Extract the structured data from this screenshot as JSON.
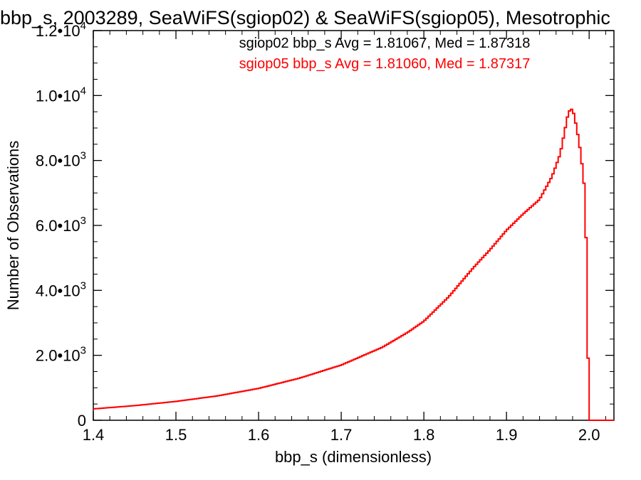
{
  "chart_data": {
    "type": "line",
    "title": "bbp_s, 2003289, SeaWiFS(sgiop02) & SeaWiFS(sgiop05), Mesotrophic",
    "xlabel": "bbp_s (dimensionless)",
    "ylabel": "Number of Observations",
    "xlim": [
      1.4,
      2.03
    ],
    "ylim": [
      0,
      12000
    ],
    "x_ticks": [
      1.4,
      1.5,
      1.6,
      1.7,
      1.8,
      1.9,
      2.0
    ],
    "x_tick_labels": [
      "1.4",
      "1.5",
      "1.6",
      "1.7",
      "1.8",
      "1.9",
      "2.0"
    ],
    "y_ticks": [
      {
        "value": 0,
        "mantissa": "0",
        "exponent": ""
      },
      {
        "value": 2000,
        "mantissa": "2.0•10",
        "exponent": "3"
      },
      {
        "value": 4000,
        "mantissa": "4.0•10",
        "exponent": "3"
      },
      {
        "value": 6000,
        "mantissa": "6.0•10",
        "exponent": "3"
      },
      {
        "value": 8000,
        "mantissa": "8.0•10",
        "exponent": "3"
      },
      {
        "value": 10000,
        "mantissa": "1.0•10",
        "exponent": "4"
      },
      {
        "value": 12000,
        "mantissa": "1.2•10",
        "exponent": "4"
      }
    ],
    "grid": false,
    "legend_position": "top-right",
    "annotations": [
      {
        "text": "sgiop02 bbp_s Avg = 1.81067, Med = 1.87318",
        "color": "#000000"
      },
      {
        "text": "sgiop05 bbp_s Avg = 1.81060, Med = 1.87317",
        "color": "#ff0000"
      }
    ],
    "series": [
      {
        "color": "#ff0000",
        "x": [
          1.4,
          1.45,
          1.5,
          1.55,
          1.6,
          1.65,
          1.7,
          1.75,
          1.78,
          1.8,
          1.83,
          1.86,
          1.88,
          1.9,
          1.92,
          1.94,
          1.955,
          1.965,
          1.975,
          1.98,
          1.985,
          1.99,
          1.995,
          1.997,
          1.999,
          2.001,
          2.003,
          2.03
        ],
        "values": [
          350,
          450,
          580,
          750,
          980,
          1300,
          1700,
          2250,
          2700,
          3050,
          3800,
          4700,
          5250,
          5850,
          6350,
          6800,
          7500,
          8200,
          9500,
          9600,
          9000,
          8200,
          7000,
          4800,
          1500,
          0,
          0,
          0
        ]
      }
    ]
  }
}
